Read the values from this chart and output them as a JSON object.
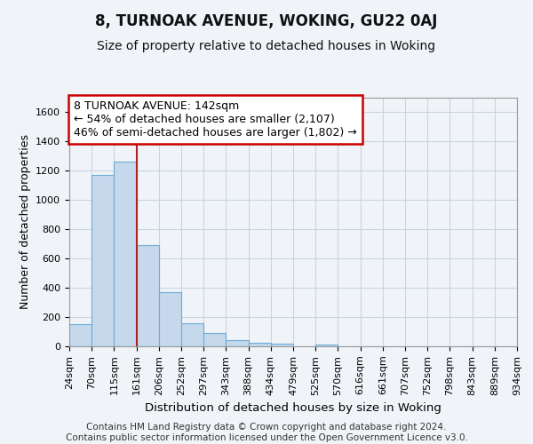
{
  "title": "8, TURNOAK AVENUE, WOKING, GU22 0AJ",
  "subtitle": "Size of property relative to detached houses in Woking",
  "xlabel": "Distribution of detached houses by size in Woking",
  "ylabel": "Number of detached properties",
  "bar_values": [
    150,
    1170,
    1260,
    690,
    370,
    160,
    90,
    40,
    25,
    20,
    0,
    15,
    0,
    0,
    0,
    0,
    0,
    0,
    0,
    0
  ],
  "bar_labels": [
    "24sqm",
    "70sqm",
    "115sqm",
    "161sqm",
    "206sqm",
    "252sqm",
    "297sqm",
    "343sqm",
    "388sqm",
    "434sqm",
    "479sqm",
    "525sqm",
    "570sqm",
    "616sqm",
    "661sqm",
    "707sqm",
    "752sqm",
    "798sqm",
    "843sqm",
    "889sqm",
    "934sqm"
  ],
  "bar_color": "#c5d8ec",
  "bar_edge_color": "#6baed6",
  "grid_color": "#c8d4e0",
  "background_color": "#f0f4f8",
  "axes_background": "#f0f4f8",
  "vline_x": 3.0,
  "vline_color": "#b22222",
  "annotation_text": "8 TURNOAK AVENUE: 142sqm\n← 54% of detached houses are smaller (2,107)\n46% of semi-detached houses are larger (1,802) →",
  "annotation_box_color": "#ffffff",
  "annotation_border_color": "#cc0000",
  "ylim": [
    0,
    1700
  ],
  "yticks": [
    0,
    200,
    400,
    600,
    800,
    1000,
    1200,
    1400,
    1600
  ],
  "footer": "Contains HM Land Registry data © Crown copyright and database right 2024.\nContains public sector information licensed under the Open Government Licence v3.0.",
  "title_fontsize": 12,
  "subtitle_fontsize": 10,
  "xlabel_fontsize": 9.5,
  "ylabel_fontsize": 9,
  "tick_fontsize": 8,
  "annotation_fontsize": 9,
  "footer_fontsize": 7.5
}
